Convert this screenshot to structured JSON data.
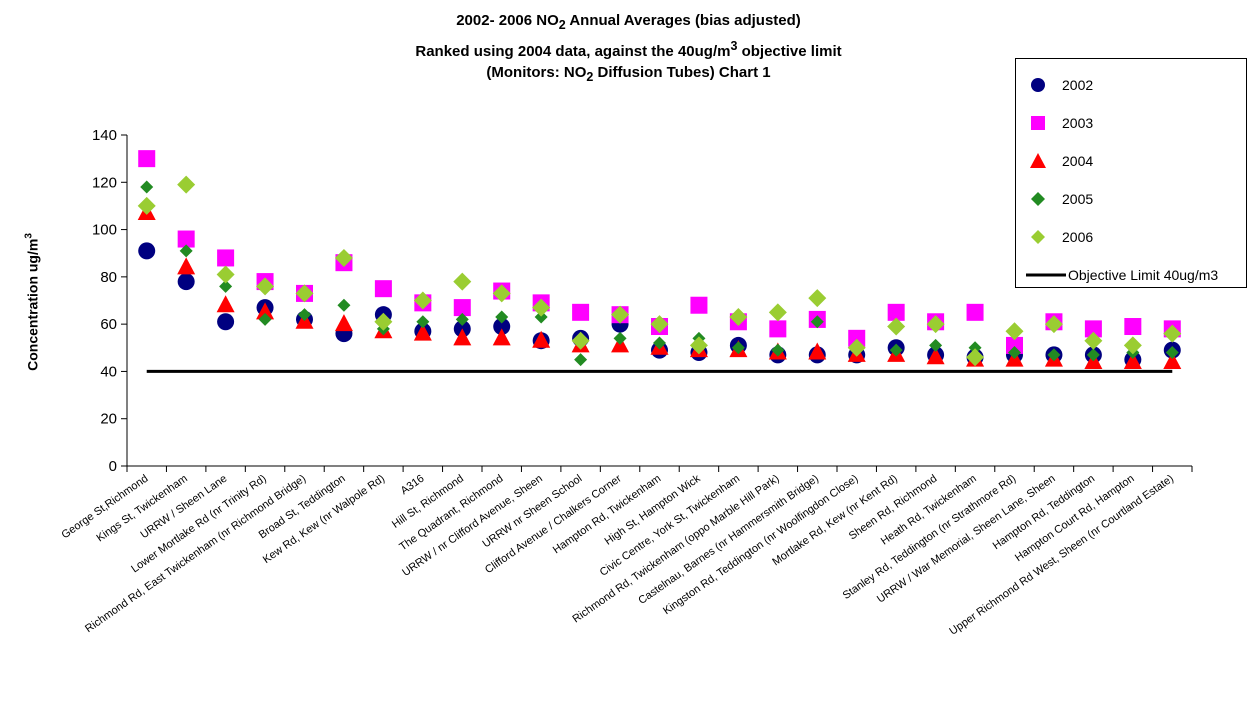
{
  "title": {
    "line1_pre": "2002- 2006 NO",
    "line1_sub": "2",
    "line1_post": " Annual Averages (bias adjusted)",
    "line2_pre": "Ranked using 2004 data, against the 40ug/m",
    "line2_sup": "3",
    "line2_post": " objective limit",
    "line3_pre": "(Monitors:  NO",
    "line3_sub": "2",
    "line3_post": " Diffusion Tubes) Chart 1"
  },
  "ylabel": {
    "text": "Concentration ug/m",
    "sup": "3"
  },
  "legend": [
    {
      "label": "2002",
      "marker": "circle",
      "color": "#000080"
    },
    {
      "label": "2003",
      "marker": "square",
      "color": "#ff00ff"
    },
    {
      "label": "2004",
      "marker": "triangle",
      "color": "#ff0000"
    },
    {
      "label": "2005",
      "marker": "diamond",
      "color": "#228b22"
    },
    {
      "label": "2006",
      "marker": "diamond",
      "color": "#9acd32"
    },
    {
      "label": "Objective Limit 40ug/m3",
      "marker": "line",
      "color": "#000000"
    }
  ],
  "chart_data": {
    "type": "scatter",
    "ylim": [
      0,
      140
    ],
    "yticks": [
      0,
      20,
      40,
      60,
      80,
      100,
      120,
      140
    ],
    "grid": false,
    "legend_position": "top-right",
    "categories": [
      "George St,Richmond",
      "Kings St, Twickenham",
      "URRW / Sheen Lane",
      "Lower Mortlake Rd (nr Trinity Rd)",
      "Richmond Rd, East Twickenham (nr Richmond Bridge)",
      "Broad St, Teddington",
      "Kew Rd, Kew (nr Walpole Rd)",
      "A316",
      "Hill St, Richmond",
      "The Quadrant, Richmond",
      "URRW / nr Clifford Avenue, Sheen",
      "URRW nr Sheen School",
      "Clifford Avenue / Chalkers Corner",
      "Hampton Rd, Twickenham",
      "High St, Hampton Wick",
      "Civic Centre, York St, Twickenham",
      "Richmond Rd, Twickenham (oppo Marble Hill Park)",
      "Castelnau, Barnes (nr Hammersmith Bridge)",
      "Kingston Rd, Teddington (nr Woolfingdon Close)",
      "Mortlake Rd, Kew (nr Kent Rd)",
      "Sheen Rd, Richmond",
      "Heath Rd, Twickenham",
      "Stanley Rd, Teddington (nr Strathmore Rd)",
      "URRW / War Memorial, Sheen Lane, Sheen",
      "Hampton Rd, Teddington",
      "Hampton Court Rd, Hampton",
      "Upper Richmond Rd West, Sheen (nr Courtland Estate)"
    ],
    "series": [
      {
        "name": "2002",
        "marker": "circle",
        "color": "#000080",
        "values": [
          91,
          78,
          61,
          67,
          62,
          56,
          64,
          57,
          58,
          59,
          53,
          54,
          60,
          49,
          48,
          51,
          47,
          47,
          47,
          50,
          47,
          46,
          47,
          47,
          47,
          45,
          49
        ]
      },
      {
        "name": "2003",
        "marker": "square",
        "color": "#ff00ff",
        "values": [
          130,
          96,
          88,
          78,
          73,
          86,
          75,
          69,
          67,
          74,
          69,
          65,
          64,
          59,
          68,
          61,
          58,
          62,
          54,
          65,
          61,
          65,
          51,
          61,
          58,
          59,
          58
        ]
      },
      {
        "name": "2004",
        "marker": "triangle",
        "color": "#ff0000",
        "values": [
          107,
          84,
          68,
          65,
          61,
          60,
          57,
          56,
          54,
          54,
          53,
          51,
          51,
          50,
          49,
          49,
          48,
          48,
          47,
          47,
          46,
          45,
          45,
          45,
          44,
          44,
          44
        ]
      },
      {
        "name": "2005",
        "marker": "diamond",
        "color": "#228b22",
        "values": [
          118,
          91,
          76,
          62,
          64,
          68,
          58,
          61,
          62,
          63,
          63,
          45,
          54,
          52,
          54,
          50,
          49,
          61,
          50,
          49,
          51,
          50,
          48,
          47,
          47,
          48,
          48
        ]
      },
      {
        "name": "2006",
        "marker": "diamond",
        "color": "#9acd32",
        "values": [
          110,
          119,
          81,
          76,
          73,
          88,
          61,
          70,
          78,
          73,
          67,
          53,
          64,
          60,
          51,
          63,
          65,
          71,
          50,
          59,
          60,
          46,
          57,
          60,
          53,
          51,
          56
        ]
      }
    ],
    "objective_limit": {
      "name": "Objective Limit 40ug/m3",
      "value": 40,
      "color": "#000000"
    }
  }
}
